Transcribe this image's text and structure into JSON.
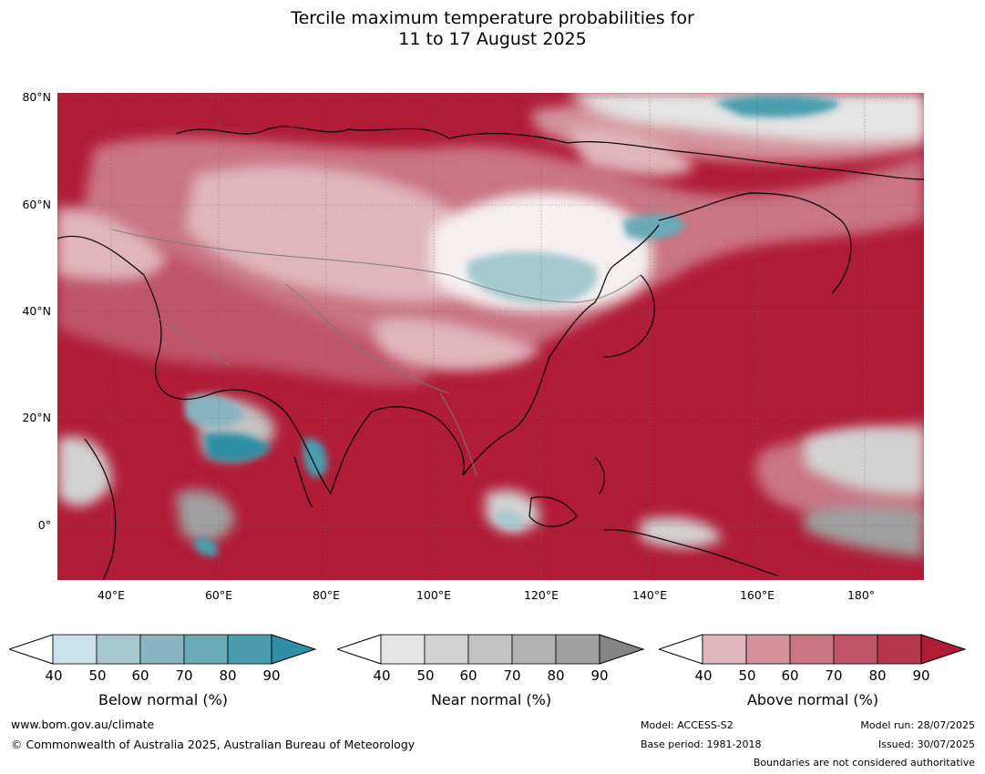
{
  "title_line1": "Tercile maximum temperature probabilities for",
  "title_line2": "11 to 17 August 2025",
  "map": {
    "lon_range": [
      30,
      191
    ],
    "lat_range": [
      -10,
      80
    ],
    "lat_ticks": [
      "80°N",
      "60°N",
      "40°N",
      "20°N",
      "0°"
    ],
    "lon_ticks": [
      "40°E",
      "60°E",
      "80°E",
      "100°E",
      "120°E",
      "140°E",
      "160°E",
      "180°"
    ],
    "dominant_category": "above normal"
  },
  "legends": [
    {
      "title": "Below normal (%)",
      "ticks": [
        "40",
        "50",
        "60",
        "70",
        "80",
        "90"
      ],
      "colors": [
        "#ffffff",
        "#c9e2e8",
        "#a6c9d0",
        "#88b5c1",
        "#6aaab8",
        "#4a9dae",
        "#2f8ea3"
      ]
    },
    {
      "title": "Near normal (%)",
      "ticks": [
        "40",
        "50",
        "60",
        "70",
        "80",
        "90"
      ],
      "colors": [
        "#ffffff",
        "#e4e4e4",
        "#d3d3d3",
        "#c3c3c3",
        "#b1b1b1",
        "#a0a0a0",
        "#848484"
      ]
    },
    {
      "title": "Above normal (%)",
      "ticks": [
        "40",
        "50",
        "60",
        "70",
        "80",
        "90"
      ],
      "colors": [
        "#ffffff",
        "#e0b5bc",
        "#d4939c",
        "#c97582",
        "#bf5567",
        "#b5374c",
        "#b01b36"
      ]
    }
  ],
  "footer": {
    "website": "www.bom.gov.au/climate",
    "copyright": "© Commonwealth of Australia 2025, Australian Bureau of Meteorology",
    "model": "Model: ACCESS-S2",
    "base_period": "Base period: 1981-2018",
    "model_run": "Model run: 28/07/2025",
    "issued": "Issued: 30/07/2025",
    "disclaimer": "Boundaries are not considered authoritative"
  }
}
